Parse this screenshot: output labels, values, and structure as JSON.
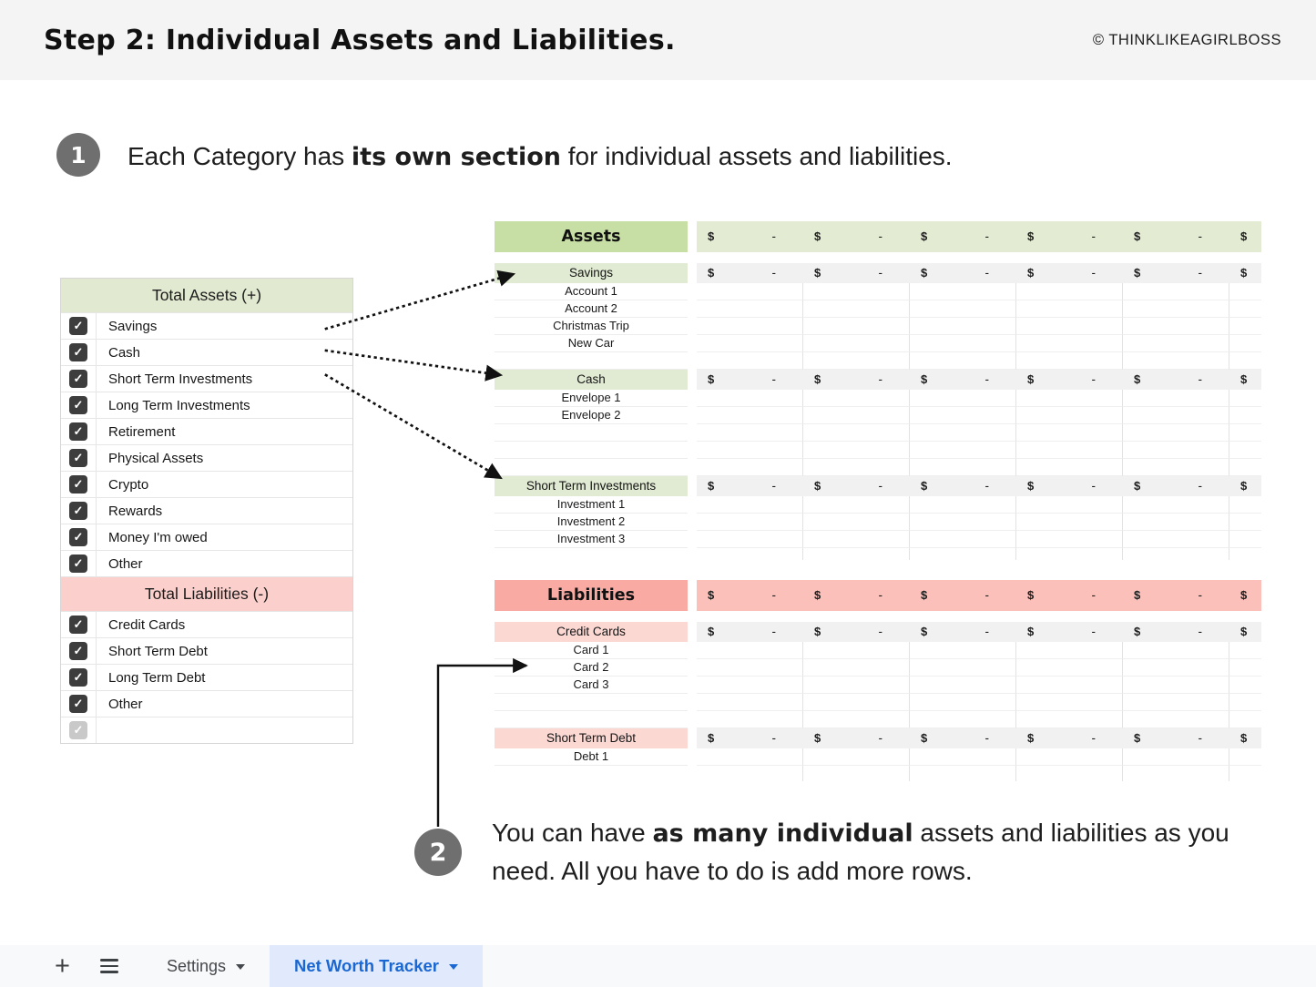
{
  "header": {
    "title": "Step 2: Individual Assets and Liabilities.",
    "copyright": "© THINKLIKEAGIRLBOSS"
  },
  "steps": {
    "one": {
      "number": "1",
      "pre": "Each Category has ",
      "bold": "its own section",
      "post": " for individual assets and liabilities."
    },
    "two": {
      "number": "2",
      "pre": "You can have ",
      "bold": "as many individual",
      "post": " assets and liabilities as you need. All you have to do is add more rows."
    }
  },
  "checklist": {
    "assets_header": "Total Assets (+)",
    "assets": [
      "Savings",
      "Cash",
      "Short Term Investments",
      "Long Term Investments",
      "Retirement",
      "Physical Assets",
      "Crypto",
      "Rewards",
      "Money I'm owed",
      "Other"
    ],
    "liabilities_header": "Total Liabilities (-)",
    "liabilities": [
      "Credit Cards",
      "Short Term Debt",
      "Long Term Debt",
      "Other"
    ],
    "trailing_empty_label": "",
    "check_glyph": "✓"
  },
  "sheet": {
    "currency_symbol": "$",
    "empty_amount": "-",
    "visible_money_columns": 6,
    "assets": {
      "header": "Assets",
      "groups": [
        {
          "name": "Savings",
          "rows": [
            "Account 1",
            "Account 2",
            "Christmas Trip",
            "New Car",
            ""
          ]
        },
        {
          "name": "Cash",
          "rows": [
            "Envelope 1",
            "Envelope 2",
            "",
            "",
            ""
          ]
        },
        {
          "name": "Short Term Investments",
          "rows": [
            "Investment 1",
            "Investment 2",
            "Investment 3",
            ""
          ]
        }
      ]
    },
    "liabilities": {
      "header": "Liabilities",
      "groups": [
        {
          "name": "Credit Cards",
          "rows": [
            "Card 1",
            "Card 2",
            "Card 3",
            "",
            ""
          ]
        },
        {
          "name": "Short Term Debt",
          "rows": [
            "Debt 1",
            "",
            ""
          ]
        }
      ]
    }
  },
  "tabbar": {
    "add_sheet_icon": "+",
    "tabs": [
      {
        "label": "Settings",
        "active": false
      },
      {
        "label": "Net Worth Tracker",
        "active": true
      }
    ]
  },
  "colors": {
    "green_header": "#c7dfa4",
    "green_money_header": "#e3ebd3",
    "green_row": "#e1ead2",
    "panel_green": "#e1e9d0",
    "pink_header": "#f9aba3",
    "pink_money_header": "#fbc0ba",
    "pink_row": "#fcd8d3",
    "panel_pink": "#fbd0cc",
    "money_gray_row": "#f1f1f1",
    "tab_active_bg": "#e1eafd",
    "tab_active_text": "#1967d2",
    "checkbox_dark": "#3d3d3d",
    "checkbox_faded": "#c9c9c9"
  }
}
